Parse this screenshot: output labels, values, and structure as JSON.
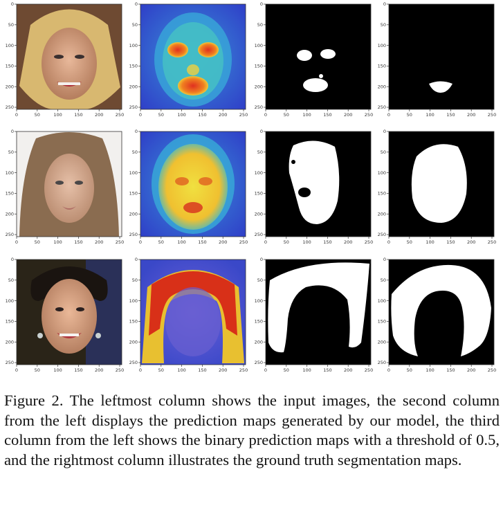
{
  "figure": {
    "tick_labels": [
      "0",
      "50",
      "100",
      "150",
      "200",
      "250"
    ],
    "columns": [
      {
        "id": "input",
        "kind": "photo"
      },
      {
        "id": "prediction-map",
        "kind": "heatmap"
      },
      {
        "id": "binary-prediction",
        "kind": "mask"
      },
      {
        "id": "ground-truth",
        "kind": "mask"
      }
    ],
    "rows": [
      {
        "id": "row-1",
        "subject": "blonde-woman-face",
        "target_region": "eyes-and-mouth"
      },
      {
        "id": "row-2",
        "subject": "long-haired-woman-face",
        "target_region": "face"
      },
      {
        "id": "row-3",
        "subject": "dark-haired-woman-face",
        "target_region": "hair"
      }
    ],
    "threshold": 0.5,
    "colors": {
      "mask_fg": "#ffffff",
      "mask_bg": "#000000",
      "heat_low": "#2f3fc8",
      "heat_mid": "#2fb8d8",
      "heat_high": "#f0e040",
      "heat_peak": "#d02818"
    }
  },
  "caption": {
    "text": "Figure 2. The leftmost column shows the input images, the second column from the left displays the prediction maps generated by our model, the third column from the left shows the binary prediction maps with a threshold of 0.5, and the rightmost column illustrates the ground truth segmentation maps."
  }
}
